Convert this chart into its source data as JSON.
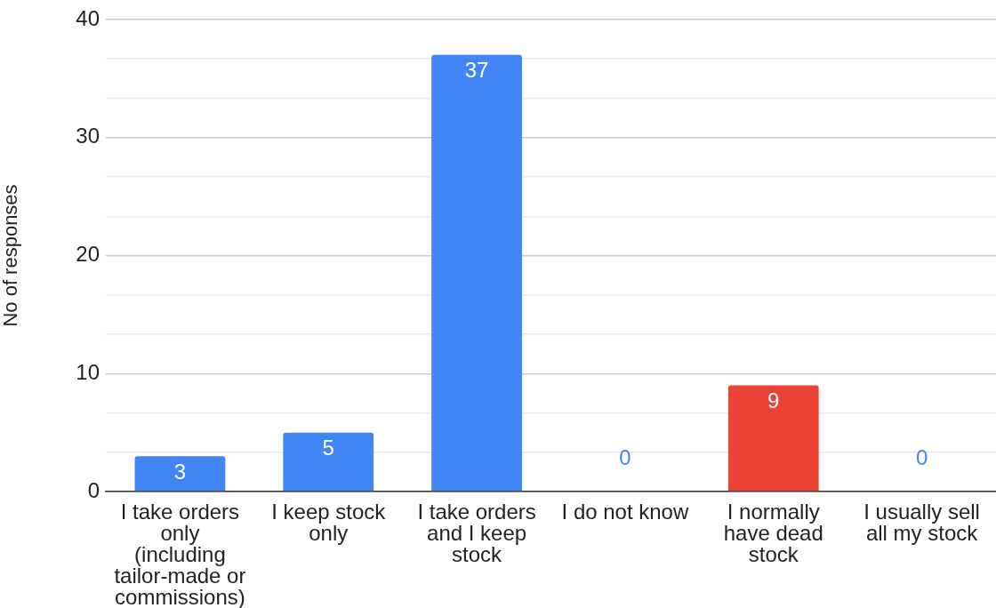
{
  "chart_data": {
    "type": "bar",
    "ylabel": "No of responses",
    "categories": [
      "I take orders only (including tailor-made or commissions)",
      "I keep stock only",
      "I take orders and I keep stock",
      "I do not know",
      "I normally have dead stock",
      "I usually sell all my stock"
    ],
    "values": [
      3,
      5,
      37,
      0,
      9,
      0
    ],
    "colors": [
      "#4285f4",
      "#4285f4",
      "#4285f4",
      "#4285f4",
      "#ea4335",
      "#4285f4"
    ],
    "ylim": [
      0,
      40
    ],
    "yticks": [
      0,
      {
        "value": 3.33,
        "label": null
      },
      {
        "value": 6.67,
        "label": null
      },
      10,
      {
        "value": 13.33,
        "label": null
      },
      {
        "value": 16.67,
        "label": null
      },
      20,
      {
        "value": 23.33,
        "label": null
      },
      {
        "value": 26.67,
        "label": null
      },
      30,
      {
        "value": 33.33,
        "label": null
      },
      {
        "value": 36.67,
        "label": null
      },
      40
    ],
    "grid": "y",
    "data_labels": true
  }
}
